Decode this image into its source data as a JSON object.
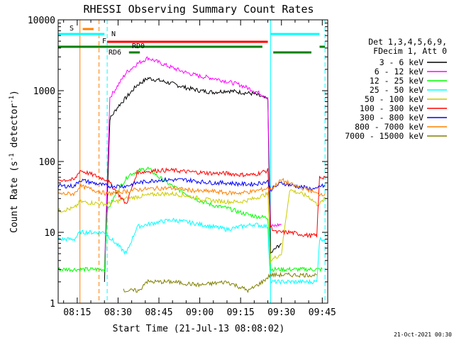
{
  "chart_data": {
    "type": "line",
    "title": "RHESSI Observing Summary Count Rates",
    "xlabel": "Start Time (21-Jul-13 08:08:02)",
    "ylabel_main": "Count Rate (s",
    "ylabel_sup": "-1",
    "ylabel_tail": " detector",
    "ylabel_sup2": "-1",
    "ylabel_end": ")",
    "y_scale": "log",
    "ylim": [
      1,
      10000
    ],
    "xlim": [
      "08:08",
      "09:47"
    ],
    "x_ticks": [
      "08:15",
      "08:30",
      "08:45",
      "09:00",
      "09:15",
      "09:30",
      "09:45"
    ],
    "y_ticks": [
      "1",
      "10",
      "100",
      "1000",
      "10000"
    ],
    "legend_header": [
      "Det 1,3,4,5,6,9,",
      "FDecim 1, Att 0"
    ],
    "legend_position": "right",
    "series": [
      {
        "name": "3 - 6 keV",
        "color": "#000000",
        "points": [
          [
            "08:25",
            2
          ],
          [
            "08:27",
            400
          ],
          [
            "08:30",
            600
          ],
          [
            "08:33",
            800
          ],
          [
            "08:37",
            1200
          ],
          [
            "08:41",
            1500
          ],
          [
            "08:45",
            1400
          ],
          [
            "08:50",
            1250
          ],
          [
            "08:55",
            1100
          ],
          [
            "09:00",
            1000
          ],
          [
            "09:05",
            950
          ],
          [
            "09:10",
            1000
          ],
          [
            "09:15",
            950
          ],
          [
            "09:20",
            900
          ],
          [
            "09:25",
            750
          ],
          [
            "09:26",
            5
          ],
          [
            "09:28",
            6
          ],
          [
            "09:30",
            7
          ]
        ]
      },
      {
        "name": "6 - 12 keV",
        "color": "#ff00ff",
        "points": [
          [
            "08:25",
            3
          ],
          [
            "08:27",
            800
          ],
          [
            "08:30",
            1200
          ],
          [
            "08:33",
            1800
          ],
          [
            "08:37",
            2400
          ],
          [
            "08:41",
            2900
          ],
          [
            "08:45",
            2500
          ],
          [
            "08:50",
            2100
          ],
          [
            "08:55",
            1800
          ],
          [
            "09:00",
            1600
          ],
          [
            "09:05",
            1500
          ],
          [
            "09:10",
            1350
          ],
          [
            "09:15",
            1200
          ],
          [
            "09:20",
            1000
          ],
          [
            "09:25",
            800
          ],
          [
            "09:26",
            12
          ],
          [
            "09:30",
            13
          ]
        ]
      },
      {
        "name": "12 - 25 keV",
        "color": "#00ff00",
        "points": [
          [
            "08:08",
            3
          ],
          [
            "08:25",
            3
          ],
          [
            "08:26",
            20
          ],
          [
            "08:30",
            40
          ],
          [
            "08:34",
            65
          ],
          [
            "08:38",
            75
          ],
          [
            "08:41",
            80
          ],
          [
            "08:45",
            60
          ],
          [
            "08:50",
            45
          ],
          [
            "08:55",
            35
          ],
          [
            "09:00",
            28
          ],
          [
            "09:05",
            24
          ],
          [
            "09:10",
            22
          ],
          [
            "09:15",
            19
          ],
          [
            "09:20",
            17
          ],
          [
            "09:25",
            16
          ],
          [
            "09:26",
            3
          ],
          [
            "09:45",
            3
          ]
        ]
      },
      {
        "name": "25 - 50 keV",
        "color": "#00ffff",
        "points": [
          [
            "08:08",
            8
          ],
          [
            "08:14",
            8
          ],
          [
            "08:16",
            10
          ],
          [
            "08:25",
            10
          ],
          [
            "08:33",
            5
          ],
          [
            "08:37",
            12
          ],
          [
            "08:45",
            14
          ],
          [
            "08:50",
            15
          ],
          [
            "08:55",
            14
          ],
          [
            "09:00",
            13
          ],
          [
            "09:05",
            12
          ],
          [
            "09:10",
            11
          ],
          [
            "09:15",
            12
          ],
          [
            "09:20",
            13
          ],
          [
            "09:25",
            12
          ],
          [
            "09:26",
            2
          ],
          [
            "09:43",
            2
          ],
          [
            "09:44",
            8
          ],
          [
            "09:46",
            8
          ]
        ]
      },
      {
        "name": "50 - 100 keV",
        "color": "#cccc00",
        "points": [
          [
            "08:08",
            20
          ],
          [
            "08:14",
            22
          ],
          [
            "08:16",
            27
          ],
          [
            "08:26",
            25
          ],
          [
            "08:33",
            30
          ],
          [
            "08:40",
            33
          ],
          [
            "08:45",
            35
          ],
          [
            "08:50",
            35
          ],
          [
            "08:55",
            33
          ],
          [
            "09:00",
            30
          ],
          [
            "09:05",
            28
          ],
          [
            "09:10",
            27
          ],
          [
            "09:15",
            27
          ],
          [
            "09:20",
            30
          ],
          [
            "09:25",
            35
          ],
          [
            "09:26",
            4
          ],
          [
            "09:30",
            5
          ],
          [
            "09:33",
            40
          ],
          [
            "09:40",
            32
          ],
          [
            "09:43",
            25
          ],
          [
            "09:44",
            25
          ],
          [
            "09:46",
            30
          ]
        ]
      },
      {
        "name": "100 - 300 keV",
        "color": "#ff0000",
        "points": [
          [
            "08:08",
            55
          ],
          [
            "08:14",
            55
          ],
          [
            "08:16",
            75
          ],
          [
            "08:26",
            55
          ],
          [
            "08:33",
            25
          ],
          [
            "08:37",
            70
          ],
          [
            "08:45",
            75
          ],
          [
            "08:50",
            75
          ],
          [
            "08:55",
            72
          ],
          [
            "09:00",
            70
          ],
          [
            "09:05",
            68
          ],
          [
            "09:10",
            68
          ],
          [
            "09:15",
            65
          ],
          [
            "09:20",
            65
          ],
          [
            "09:25",
            75
          ],
          [
            "09:26",
            12
          ],
          [
            "09:28",
            10
          ],
          [
            "09:33",
            10
          ],
          [
            "09:40",
            9
          ],
          [
            "09:43",
            9
          ],
          [
            "09:44",
            60
          ],
          [
            "09:46",
            60
          ]
        ]
      },
      {
        "name": "300 - 800 keV",
        "color": "#0000ff",
        "points": [
          [
            "08:08",
            45
          ],
          [
            "08:14",
            45
          ],
          [
            "08:16",
            55
          ],
          [
            "08:26",
            45
          ],
          [
            "08:33",
            45
          ],
          [
            "08:37",
            50
          ],
          [
            "08:45",
            55
          ],
          [
            "08:50",
            55
          ],
          [
            "08:55",
            55
          ],
          [
            "09:00",
            52
          ],
          [
            "09:05",
            50
          ],
          [
            "09:10",
            50
          ],
          [
            "09:15",
            48
          ],
          [
            "09:20",
            48
          ],
          [
            "09:25",
            52
          ],
          [
            "09:26",
            40
          ],
          [
            "09:30",
            50
          ],
          [
            "09:35",
            45
          ],
          [
            "09:40",
            42
          ],
          [
            "09:43",
            40
          ],
          [
            "09:44",
            45
          ],
          [
            "09:46",
            45
          ]
        ]
      },
      {
        "name": "800 - 7000 keV",
        "color": "#ff8000",
        "points": [
          [
            "08:08",
            35
          ],
          [
            "08:14",
            35
          ],
          [
            "08:16",
            45
          ],
          [
            "08:26",
            35
          ],
          [
            "08:33",
            38
          ],
          [
            "08:37",
            40
          ],
          [
            "08:45",
            42
          ],
          [
            "08:50",
            42
          ],
          [
            "08:55",
            40
          ],
          [
            "09:00",
            38
          ],
          [
            "09:05",
            38
          ],
          [
            "09:10",
            36
          ],
          [
            "09:15",
            36
          ],
          [
            "09:20",
            38
          ],
          [
            "09:25",
            42
          ],
          [
            "09:26",
            40
          ],
          [
            "09:30",
            55
          ],
          [
            "09:35",
            45
          ],
          [
            "09:40",
            40
          ],
          [
            "09:43",
            35
          ],
          [
            "09:44",
            35
          ],
          [
            "09:46",
            35
          ]
        ]
      },
      {
        "name": "7000 - 15000 keV",
        "color": "#808000",
        "points": [
          [
            "08:32",
            1.5
          ],
          [
            "08:38",
            1.5
          ],
          [
            "08:40",
            2
          ],
          [
            "08:50",
            2
          ],
          [
            "09:00",
            1.8
          ],
          [
            "09:10",
            2
          ],
          [
            "09:18",
            1.5
          ],
          [
            "09:23",
            2
          ],
          [
            "09:26",
            2.5
          ],
          [
            "09:35",
            2.5
          ],
          [
            "09:43",
            2.5
          ]
        ]
      }
    ],
    "flags": [
      {
        "label": "S",
        "color": "#ff8000",
        "from": "08:17",
        "to": "08:21"
      },
      {
        "label": "N",
        "color": "#00ffff",
        "from": "08:08",
        "to": "08:25"
      },
      {
        "label": "N",
        "color": "#00ffff",
        "from": "09:26",
        "to": "09:44"
      },
      {
        "label": "F",
        "color": "#ff0000",
        "from": "08:26",
        "to": "09:25"
      },
      {
        "label": "RD0",
        "color": "#008000",
        "from": "08:08",
        "to": "09:23"
      },
      {
        "label": "RD0",
        "color": "#008000",
        "from": "09:44",
        "to": "09:46"
      },
      {
        "label": "RD6",
        "color": "#008000",
        "from": "08:34",
        "to": "08:38"
      },
      {
        "label": "RD6",
        "color": "#008000",
        "from": "09:27",
        "to": "09:41"
      }
    ],
    "flag_text": {
      "S": "S",
      "N": "N",
      "F": "F",
      "RD0": "RD0",
      "RD6": "RD6"
    },
    "markers": [
      {
        "time": "08:16",
        "color": "#ff8000",
        "style": "solid"
      },
      {
        "time": "08:23",
        "color": "#ff8000",
        "style": "dashed"
      },
      {
        "time": "08:08",
        "color": "#00ffff",
        "style": "solid"
      },
      {
        "time": "08:26",
        "color": "#00ffff",
        "style": "dashed"
      },
      {
        "time": "09:26",
        "color": "#00ffff",
        "style": "solid"
      },
      {
        "time": "09:46",
        "color": "#00ffff",
        "style": "dashed"
      }
    ],
    "timestamp": "21-Oct-2021 00:30",
    "grid": false
  }
}
